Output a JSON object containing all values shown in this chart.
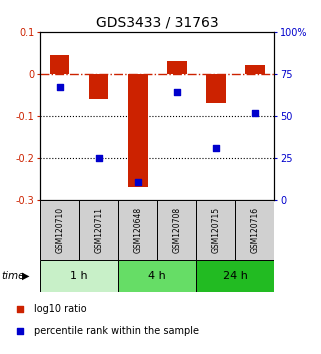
{
  "title": "GDS3433 / 31763",
  "samples": [
    "GSM120710",
    "GSM120711",
    "GSM120648",
    "GSM120708",
    "GSM120715",
    "GSM120716"
  ],
  "log10_ratio": [
    0.045,
    -0.06,
    -0.27,
    0.03,
    -0.07,
    0.02
  ],
  "percentile_rank": [
    67,
    25,
    11,
    64,
    31,
    52
  ],
  "time_groups": [
    {
      "label": "1 h",
      "cols": [
        0,
        1
      ],
      "color": "#c8f0c8"
    },
    {
      "label": "4 h",
      "cols": [
        2,
        3
      ],
      "color": "#66dd66"
    },
    {
      "label": "24 h",
      "cols": [
        4,
        5
      ],
      "color": "#22bb22"
    }
  ],
  "ylim_left": [
    -0.3,
    0.1
  ],
  "ylim_right": [
    0,
    100
  ],
  "bar_color": "#cc2200",
  "dot_color": "#0000cc",
  "background_color": "#ffffff",
  "title_fontsize": 10,
  "tick_fontsize": 7,
  "sample_fontsize": 5.5,
  "time_fontsize": 8,
  "legend_fontsize": 7,
  "hline_zero_color": "#cc2200",
  "hline_dotted_color": "#000000",
  "bar_width": 0.5,
  "dot_size": 22
}
